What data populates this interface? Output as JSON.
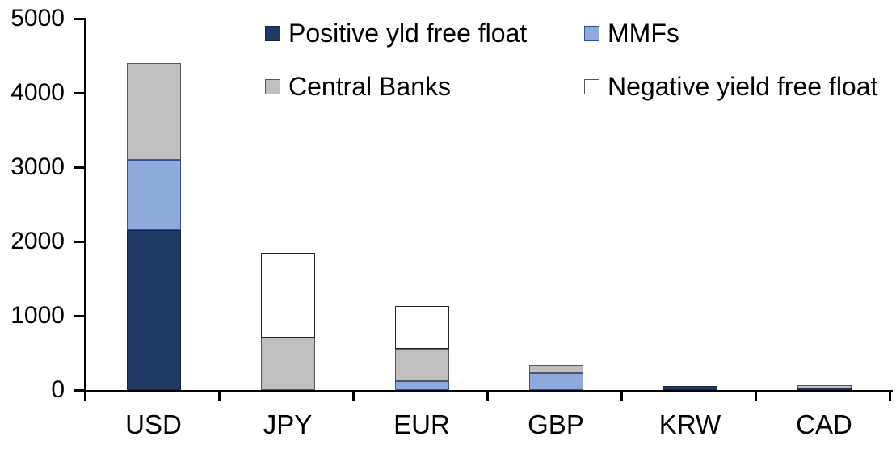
{
  "chart_data": {
    "type": "bar",
    "subtype": "stacked-vertical",
    "title": "",
    "xlabel": "",
    "ylabel": "",
    "categories": [
      "USD",
      "JPY",
      "EUR",
      "GBP",
      "KRW",
      "CAD"
    ],
    "series": [
      {
        "name": "Positive yld free float",
        "color": "#1F3864",
        "border_color": "#17263F",
        "values": [
          2150,
          0,
          0,
          0,
          50,
          30
        ]
      },
      {
        "name": "MMFs",
        "color": "#8EA9DB",
        "border_color": "#31538F",
        "values": [
          950,
          0,
          120,
          230,
          0,
          0
        ]
      },
      {
        "name": "Central Banks",
        "color": "#BFBFBF",
        "border_color": "#595959",
        "values": [
          1300,
          710,
          430,
          110,
          0,
          40
        ]
      },
      {
        "name": "Negative yield free float",
        "color": "#FFFFFF",
        "border_color": "#262626",
        "values": [
          0,
          1140,
          580,
          0,
          0,
          0
        ]
      }
    ],
    "totals": [
      4400,
      1850,
      1130,
      340,
      50,
      70
    ],
    "ylim": [
      0,
      5000
    ],
    "yticks": [
      0,
      1000,
      2000,
      3000,
      4000,
      5000
    ],
    "grid": "off",
    "legend_position": "top, two columns, two rows",
    "axis_color": "#000000",
    "background_color": "#FFFFFF"
  }
}
